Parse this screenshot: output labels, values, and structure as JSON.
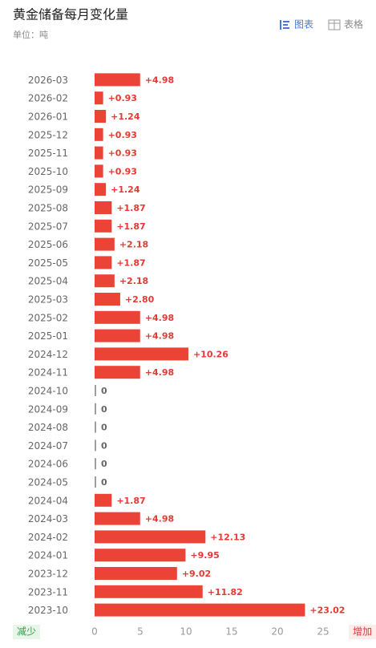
{
  "header": {
    "title": "黄金储备每月变化量",
    "unit": "单位：吨",
    "tabs": [
      "图表",
      "表格"
    ]
  },
  "chart_data": {
    "type": "bar",
    "orientation": "horizontal",
    "categories": [
      "2026-03",
      "2026-02",
      "2026-01",
      "2025-12",
      "2025-11",
      "2025-10",
      "2025-09",
      "2025-08",
      "2025-07",
      "2025-06",
      "2025-05",
      "2025-04",
      "2025-03",
      "2025-02",
      "2025-01",
      "2024-12",
      "2024-11",
      "2024-10",
      "2024-09",
      "2024-08",
      "2024-07",
      "2024-06",
      "2024-05",
      "2024-04",
      "2024-03",
      "2024-02",
      "2024-01",
      "2023-12",
      "2023-11",
      "2023-10"
    ],
    "values": [
      4.98,
      0.93,
      1.24,
      0.93,
      0.93,
      0.93,
      1.24,
      1.87,
      1.87,
      2.18,
      1.87,
      2.18,
      2.8,
      4.98,
      4.98,
      10.26,
      4.98,
      0,
      0,
      0,
      0,
      0,
      0,
      1.87,
      4.98,
      12.13,
      9.95,
      9.02,
      11.82,
      23.02
    ],
    "value_labels": [
      "+4.98",
      "+0.93",
      "+1.24",
      "+0.93",
      "+0.93",
      "+0.93",
      "+1.24",
      "+1.87",
      "+1.87",
      "+2.18",
      "+1.87",
      "+2.18",
      "+2.80",
      "+4.98",
      "+4.98",
      "+10.26",
      "+4.98",
      "0",
      "0",
      "0",
      "0",
      "0",
      "0",
      "+1.87",
      "+4.98",
      "+12.13",
      "+9.95",
      "+9.02",
      "+11.82",
      "+23.02"
    ],
    "color": "#eb4436",
    "zero_color": "#9e9e9e",
    "xlim": [
      0,
      30
    ],
    "xticks": [
      0,
      5,
      10,
      15,
      20,
      25
    ],
    "left_label": "减少",
    "right_label": "增加"
  }
}
